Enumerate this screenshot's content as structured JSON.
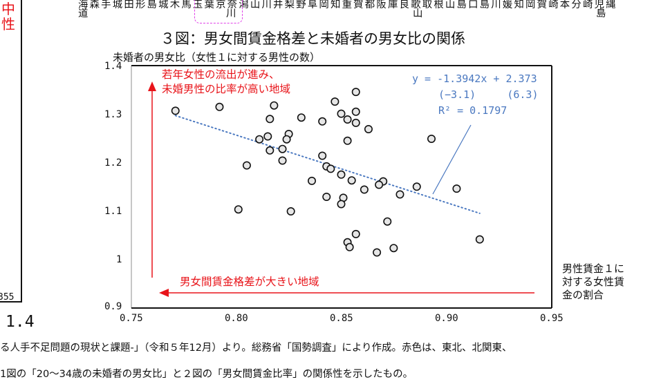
{
  "left_fragment": {
    "char1": "中",
    "char2": "性",
    "value_cut": "355",
    "big_value": "1.4"
  },
  "prefecture_strip": {
    "line1": "海森手城田形島城木馬玉葉京奈潟山川井梨野阜岡知重賀都阪庫良歌取根山島口島川媛知岡賀崎本分崎児縄",
    "line2": [
      {
        "char": "道",
        "under": "海"
      },
      {
        "char": "川",
        "under": "奈"
      },
      {
        "char": "山",
        "under": "歌"
      },
      {
        "char": "島",
        "under": "児"
      }
    ]
  },
  "footnotes": {
    "line1": "る人手不足問題の現状と課題-」（令和５年12月）より。総務省「国勢調査」により作成。赤色は、東北、北関東、",
    "line2": "1図の「20～34歳の未婚者の男女比」と２図の「男女間賃金比率」の関係性を示したもの。"
  },
  "colors": {
    "annotation_red": "#e8141a",
    "trend_blue": "#4a78c0",
    "marker_fill": "#e6e6e6",
    "marker_edge": "#111111",
    "highlight_magenta": "#e040e8"
  },
  "chart_data": {
    "type": "scatter",
    "title": "３図：男女間賃金格差と未婚者の男女比の関係",
    "ylabel": "未婚者の男女比（女性１に対する男性の数）",
    "xlabel": "男性賃金１に対する女性賃金の割合",
    "xlabel_lines": [
      "男性賃金１に",
      "対する女性賃",
      "金の割合"
    ],
    "xlim": [
      0.75,
      0.95
    ],
    "ylim": [
      0.9,
      1.4
    ],
    "xticks": [
      "0.75",
      "0.80",
      "0.85",
      "0.90",
      "0.95"
    ],
    "yticks": [
      "1.4",
      "1.3",
      "1.2",
      "1.1",
      "1",
      "0.9"
    ],
    "grid": false,
    "series": [
      {
        "name": "都道府県",
        "points": [
          [
            0.771,
            1.308
          ],
          [
            0.792,
            1.316
          ],
          [
            0.818,
            1.319
          ],
          [
            0.816,
            1.291
          ],
          [
            0.831,
            1.294
          ],
          [
            0.815,
            1.255
          ],
          [
            0.825,
            1.26
          ],
          [
            0.824,
            1.249
          ],
          [
            0.811,
            1.249
          ],
          [
            0.816,
            1.226
          ],
          [
            0.822,
            1.229
          ],
          [
            0.822,
            1.205
          ],
          [
            0.805,
            1.195
          ],
          [
            0.836,
            1.163
          ],
          [
            0.801,
            1.104
          ],
          [
            0.826,
            1.1
          ],
          [
            0.857,
            1.347
          ],
          [
            0.847,
            1.327
          ],
          [
            0.841,
            1.286
          ],
          [
            0.85,
            1.302
          ],
          [
            0.853,
            1.29
          ],
          [
            0.857,
            1.306
          ],
          [
            0.857,
            1.283
          ],
          [
            0.863,
            1.27
          ],
          [
            0.853,
            1.246
          ],
          [
            0.841,
            1.215
          ],
          [
            0.843,
            1.193
          ],
          [
            0.845,
            1.188
          ],
          [
            0.85,
            1.176
          ],
          [
            0.855,
            1.164
          ],
          [
            0.87,
            1.162
          ],
          [
            0.868,
            1.155
          ],
          [
            0.861,
            1.145
          ],
          [
            0.878,
            1.135
          ],
          [
            0.886,
            1.151
          ],
          [
            0.843,
            1.13
          ],
          [
            0.851,
            1.128
          ],
          [
            0.85,
            1.115
          ],
          [
            0.872,
            1.079
          ],
          [
            0.857,
            1.053
          ],
          [
            0.853,
            1.036
          ],
          [
            0.854,
            1.026
          ],
          [
            0.867,
            1.015
          ],
          [
            0.875,
            1.024
          ],
          [
            0.893,
            1.25
          ],
          [
            0.905,
            1.147
          ],
          [
            0.916,
            1.042
          ]
        ]
      }
    ],
    "trendline": {
      "type": "linear",
      "slope": -1.3942,
      "intercept": 2.373,
      "x_range": [
        0.771,
        0.916
      ],
      "equation_label": "y = -1.3942x + 2.373",
      "t_values_label": "(−3.1)     (6.3)",
      "r2_label": "R² = 0.1797"
    },
    "annotations": [
      {
        "text_lines": [
          "若年女性の流出が進み、",
          "未婚男性の比率が高い地域"
        ],
        "arrow": "up"
      },
      {
        "text": "男女間賃金格差が大きい地域",
        "arrow": "left"
      }
    ]
  }
}
